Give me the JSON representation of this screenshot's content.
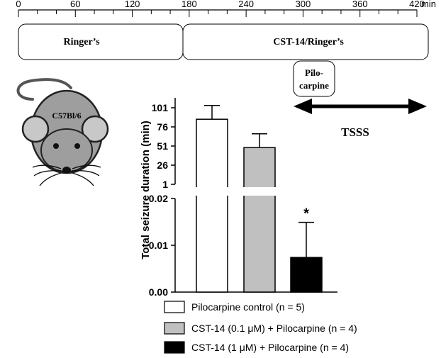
{
  "timeline": {
    "unit": "min",
    "ticks": [
      "0",
      "60",
      "120",
      "180",
      "240",
      "300",
      "360",
      "420"
    ],
    "phases": [
      {
        "label": "Ringer’s",
        "start": 0,
        "end": 180
      },
      {
        "label": "CST-14/Ringer’s",
        "start": 180,
        "end": 420
      }
    ],
    "injection": {
      "label_line1": "Pilo-",
      "label_line2": "carpine",
      "time": 300
    },
    "window": {
      "label": "TSSS",
      "start": 300,
      "end": 420
    }
  },
  "mouse": {
    "strain_label": "C57Bl/6",
    "icon": "mouse-icon"
  },
  "chart_data": {
    "type": "bar",
    "ylabel": "Total seizure duration (min)",
    "xlabel": "",
    "axis_break": true,
    "upper_segment": {
      "ticks": [
        "1",
        "26",
        "51",
        "76",
        "101"
      ],
      "ylim": [
        1,
        110
      ]
    },
    "lower_segment": {
      "ticks": [
        "0.00",
        "0.01",
        "0.02"
      ],
      "ylim": [
        0,
        0.02
      ]
    },
    "series": [
      {
        "name": "Pilocarpine control (n = 5)",
        "value": 86,
        "error": 18,
        "color": "#ffffff",
        "significance": ""
      },
      {
        "name": "CST-14 (0.1 μM) + Pilocarpine (n = 4)",
        "value": 49,
        "error": 18,
        "color": "#c0c0c0",
        "significance": ""
      },
      {
        "name": "CST-14 (1 μM) + Pilocarpine (n = 4)",
        "value": 0.0074,
        "error": 0.0075,
        "color": "#000000",
        "significance": "*"
      }
    ]
  }
}
